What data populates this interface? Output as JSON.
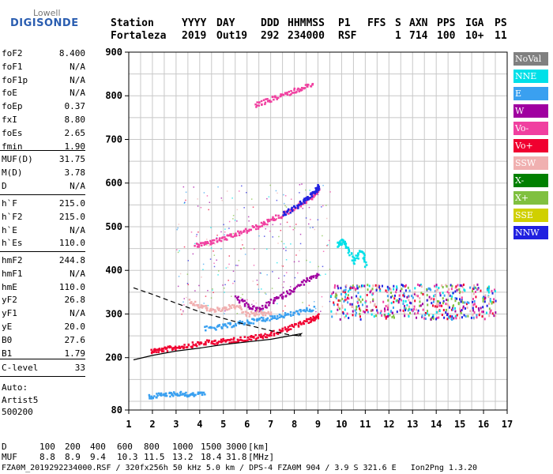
{
  "logo": {
    "line1": "Lowell",
    "line2": "DIGISONDE"
  },
  "header": {
    "row1": [
      "Station",
      "YYYY",
      "DAY",
      "DDD",
      "HHMMSS",
      "P1",
      "FFS",
      "S",
      "AXN",
      "PPS",
      "IGA",
      "PS"
    ],
    "row2": [
      "Fortaleza",
      "2019",
      "Out19",
      "292",
      "234000",
      "RSF",
      "1",
      "714",
      "100",
      "10+",
      "11"
    ]
  },
  "params": {
    "group1": [
      {
        "label": "foF2",
        "value": "8.400"
      },
      {
        "label": "foF1",
        "value": "N/A"
      },
      {
        "label": "foF1p",
        "value": "N/A"
      },
      {
        "label": "foE",
        "value": "N/A"
      },
      {
        "label": "foEp",
        "value": "0.37"
      },
      {
        "label": "fxI",
        "value": "8.80"
      },
      {
        "label": "foEs",
        "value": "2.65"
      },
      {
        "label": "fmin",
        "value": "1.90"
      }
    ],
    "group2": [
      {
        "label": "MUF(D)",
        "value": "31.75"
      },
      {
        "label": "M(D)",
        "value": "3.78"
      },
      {
        "label": "D",
        "value": "N/A"
      }
    ],
    "group3": [
      {
        "label": "h`F",
        "value": "215.0"
      },
      {
        "label": "h`F2",
        "value": "215.0"
      },
      {
        "label": "h`E",
        "value": "N/A"
      },
      {
        "label": "h`Es",
        "value": "110.0"
      }
    ],
    "group4": [
      {
        "label": "hmF2",
        "value": "244.8"
      },
      {
        "label": "hmF1",
        "value": "N/A"
      },
      {
        "label": "hmE",
        "value": "110.0"
      },
      {
        "label": "yF2",
        "value": "26.8"
      },
      {
        "label": "yF1",
        "value": "N/A"
      },
      {
        "label": "yE",
        "value": "20.0"
      },
      {
        "label": "B0",
        "value": "27.6"
      },
      {
        "label": "B1",
        "value": "1.79"
      }
    ],
    "group5": [
      {
        "label": "C-level",
        "value": "33"
      }
    ],
    "auto": [
      "Auto:",
      "Artist5",
      "500200"
    ]
  },
  "legend": [
    {
      "label": "NoVal",
      "color": "#808080"
    },
    {
      "label": "NNE",
      "color": "#00e0e8"
    },
    {
      "label": "E",
      "color": "#3aa0f0"
    },
    {
      "label": "W",
      "color": "#a000a0"
    },
    {
      "label": "Vo-",
      "color": "#f040a0"
    },
    {
      "label": "Vo+",
      "color": "#f00030"
    },
    {
      "label": "SSW",
      "color": "#f0b0b0"
    },
    {
      "label": "X-",
      "color": "#008000"
    },
    {
      "label": "X+",
      "color": "#80c040"
    },
    {
      "label": "SSE",
      "color": "#d0d000"
    },
    {
      "label": "NNW",
      "color": "#2020e0"
    }
  ],
  "footer": {
    "d_label": "D",
    "d_values": [
      "100",
      "200",
      "400",
      "600",
      "800",
      "1000",
      "1500",
      "3000",
      "[km]"
    ],
    "muf_label": "MUF",
    "muf_values": [
      "8.8",
      "8.9",
      "9.4",
      "10.3",
      "11.5",
      "13.2",
      "18.4",
      "31.8",
      "[MHz]"
    ],
    "file_line": "FZA0M_2019292234000.RSF / 320fx256h 50 kHz 5.0 km / DPS-4 FZA0M 904 / 3.9 S 321.6 E   Ion2Png 1.3.20"
  },
  "chart_data": {
    "type": "scatter",
    "title": "",
    "xlabel": "",
    "ylabel": "",
    "xlim": [
      1,
      17
    ],
    "ylim": [
      80,
      900
    ],
    "x_ticks": [
      1,
      2,
      3,
      4,
      5,
      6,
      7,
      8,
      9,
      10,
      11,
      12,
      13,
      14,
      15,
      16,
      17
    ],
    "y_ticks": [
      80,
      200,
      300,
      400,
      500,
      600,
      700,
      800,
      900
    ],
    "y_ticks_sub": [
      100,
      150,
      250,
      350,
      450,
      550,
      650,
      750,
      850
    ],
    "grid": true,
    "series": [
      {
        "color": "#f00030",
        "points": [
          [
            1.9,
            218
          ],
          [
            2.2,
            219
          ],
          [
            2.6,
            222
          ],
          [
            3.0,
            226
          ],
          [
            3.5,
            230
          ],
          [
            4.0,
            235
          ],
          [
            4.5,
            238
          ],
          [
            5.0,
            240
          ],
          [
            5.5,
            243
          ],
          [
            6.0,
            246
          ],
          [
            6.5,
            250
          ],
          [
            7.0,
            256
          ],
          [
            7.5,
            265
          ],
          [
            8.0,
            275
          ],
          [
            8.5,
            285
          ],
          [
            8.8,
            292
          ],
          [
            9.0,
            300
          ]
        ]
      },
      {
        "color": "#3aa0f0",
        "points": [
          [
            4.2,
            268
          ],
          [
            4.8,
            272
          ],
          [
            5.3,
            277
          ],
          [
            5.8,
            282
          ],
          [
            6.3,
            287
          ],
          [
            6.8,
            292
          ],
          [
            7.3,
            297
          ],
          [
            7.8,
            302
          ],
          [
            8.3,
            308
          ],
          [
            8.8,
            314
          ]
        ]
      },
      {
        "color": "#f040a0",
        "points": [
          [
            3.8,
            458
          ],
          [
            4.3,
            465
          ],
          [
            4.8,
            472
          ],
          [
            5.3,
            480
          ],
          [
            5.8,
            490
          ],
          [
            6.3,
            500
          ],
          [
            6.8,
            512
          ],
          [
            7.3,
            525
          ],
          [
            7.8,
            540
          ],
          [
            8.3,
            555
          ],
          [
            8.7,
            570
          ],
          [
            8.9,
            580
          ],
          [
            9.0,
            590
          ]
        ]
      },
      {
        "color": "#2020e0",
        "points": [
          [
            7.5,
            530
          ],
          [
            7.9,
            543
          ],
          [
            8.3,
            558
          ],
          [
            8.6,
            572
          ],
          [
            8.9,
            585
          ],
          [
            9.0,
            595
          ]
        ]
      },
      {
        "color": "#a000a0",
        "points": [
          [
            5.5,
            340
          ],
          [
            6.0,
            320
          ],
          [
            6.5,
            310
          ],
          [
            7.0,
            330
          ],
          [
            7.5,
            345
          ],
          [
            8.0,
            360
          ],
          [
            8.5,
            380
          ],
          [
            9.0,
            390
          ]
        ]
      },
      {
        "color": "#f0b0b0",
        "points": [
          [
            3.5,
            330
          ],
          [
            4.0,
            320
          ],
          [
            4.5,
            310
          ],
          [
            5.0,
            315
          ],
          [
            5.5,
            320
          ],
          [
            6.0,
            300
          ],
          [
            6.5,
            305
          ],
          [
            7.0,
            300
          ]
        ]
      },
      {
        "color": "#00e0e8",
        "points": [
          [
            9.8,
            460
          ],
          [
            10.0,
            470
          ],
          [
            10.2,
            455
          ],
          [
            10.5,
            420
          ],
          [
            10.8,
            450
          ],
          [
            11.0,
            410
          ]
        ]
      },
      {
        "color": "#f040a0",
        "points": [
          [
            6.3,
            780
          ],
          [
            6.8,
            790
          ],
          [
            7.3,
            800
          ],
          [
            7.8,
            810
          ],
          [
            8.3,
            820
          ],
          [
            8.8,
            830
          ]
        ]
      },
      {
        "color": "#3aa0f0",
        "points": [
          [
            1.8,
            112
          ],
          [
            2.2,
            115
          ],
          [
            2.6,
            118
          ],
          [
            3.0,
            120
          ],
          [
            3.4,
            118
          ],
          [
            3.8,
            118
          ],
          [
            4.2,
            118
          ]
        ]
      }
    ],
    "cloud_region": [
      [
        9.5,
        290
      ],
      [
        16.5,
        370
      ]
    ],
    "profile_lines": {
      "solid": [
        [
          1.2,
          195
        ],
        [
          2,
          205
        ],
        [
          3,
          215
        ],
        [
          4,
          222
        ],
        [
          5,
          230
        ],
        [
          6,
          236
        ],
        [
          7,
          242
        ],
        [
          7.8,
          250
        ],
        [
          8.3,
          255
        ],
        [
          8.2,
          250
        ],
        [
          8.0,
          252
        ]
      ],
      "dashed": [
        [
          1.2,
          360
        ],
        [
          2,
          345
        ],
        [
          3,
          325
        ],
        [
          4,
          305
        ],
        [
          5,
          290
        ],
        [
          6,
          275
        ],
        [
          7,
          262
        ],
        [
          7.8,
          252
        ],
        [
          8.3,
          250
        ]
      ]
    }
  }
}
